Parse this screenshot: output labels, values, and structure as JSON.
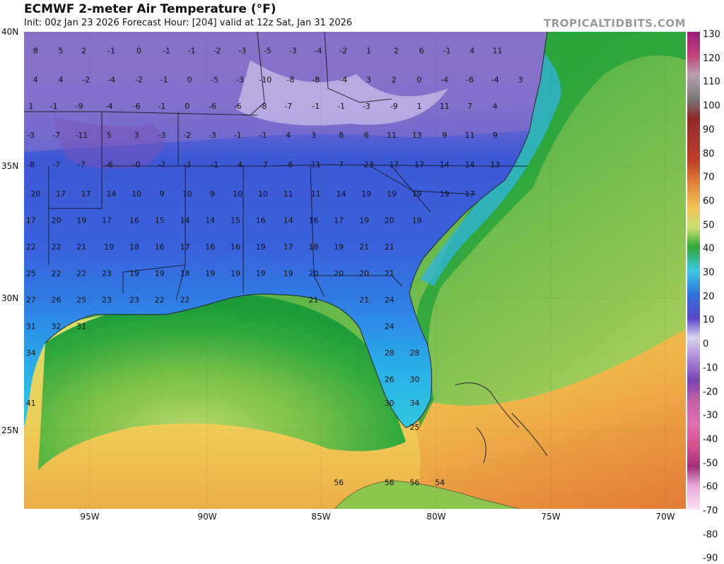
{
  "header": {
    "title": "ECMWF 2-meter Air Temperature (°F)",
    "subtitle": "Init: 00z Jan 23 2026   Forecast Hour: [204]   valid at 12z Sat, Jan 31 2026",
    "brand": "TROPICALTIDBITS.COM"
  },
  "axes": {
    "lat_labels": [
      "40N",
      "35N",
      "30N",
      "25N"
    ],
    "lon_labels": [
      "95W",
      "90W",
      "85W",
      "80W",
      "75W",
      "70W"
    ]
  },
  "colorbar": {
    "ticks": [
      "130",
      "120",
      "110",
      "100",
      "90",
      "80",
      "70",
      "60",
      "50",
      "40",
      "30",
      "20",
      "10",
      "0",
      "-10",
      "-20",
      "-30",
      "-40",
      "-50",
      "-60",
      "-70",
      "-80",
      "-90"
    ],
    "colors": [
      "#9a1e7a",
      "#c2447a",
      "#b8a0b0",
      "#8a8a8a",
      "#8e2a2a",
      "#c0402a",
      "#e08838",
      "#f0c858",
      "#c8e070",
      "#30a838",
      "#3cc0d8",
      "#3070d8",
      "#5a48c8",
      "#d8d0e8",
      "#b090d8",
      "#8048b0",
      "#c060a8",
      "#e070b0",
      "#d0508a",
      "#a03078",
      "#e8a8d8",
      "#ffd8f0"
    ]
  },
  "station_values": [
    {
      "lon": -97.6,
      "lat": 39.3,
      "t": "8"
    },
    {
      "lon": -96.5,
      "lat": 39.3,
      "t": "5"
    },
    {
      "lon": -95.5,
      "lat": 39.3,
      "t": "2"
    },
    {
      "lon": -94.3,
      "lat": 39.3,
      "t": "-1"
    },
    {
      "lon": -93.1,
      "lat": 39.3,
      "t": "0"
    },
    {
      "lon": -91.9,
      "lat": 39.3,
      "t": "-1"
    },
    {
      "lon": -90.8,
      "lat": 39.3,
      "t": "-1"
    },
    {
      "lon": -89.7,
      "lat": 39.3,
      "t": "-2"
    },
    {
      "lon": -88.6,
      "lat": 39.3,
      "t": "-3"
    },
    {
      "lon": -87.5,
      "lat": 39.3,
      "t": "-5"
    },
    {
      "lon": -86.4,
      "lat": 39.3,
      "t": "-3"
    },
    {
      "lon": -85.3,
      "lat": 39.3,
      "t": "-4"
    },
    {
      "lon": -84.2,
      "lat": 39.3,
      "t": "-2"
    },
    {
      "lon": -83.1,
      "lat": 39.3,
      "t": "1"
    },
    {
      "lon": -81.9,
      "lat": 39.3,
      "t": "2"
    },
    {
      "lon": -80.8,
      "lat": 39.3,
      "t": "6"
    },
    {
      "lon": -79.7,
      "lat": 39.3,
      "t": "-1"
    },
    {
      "lon": -78.6,
      "lat": 39.3,
      "t": "4"
    },
    {
      "lon": -77.5,
      "lat": 39.3,
      "t": "11"
    },
    {
      "lon": -97.6,
      "lat": 38.2,
      "t": "4"
    },
    {
      "lon": -96.5,
      "lat": 38.2,
      "t": "4"
    },
    {
      "lon": -95.4,
      "lat": 38.2,
      "t": "-2"
    },
    {
      "lon": -94.3,
      "lat": 38.2,
      "t": "-4"
    },
    {
      "lon": -93.1,
      "lat": 38.2,
      "t": "-2"
    },
    {
      "lon": -92,
      "lat": 38.2,
      "t": "-1"
    },
    {
      "lon": -90.9,
      "lat": 38.2,
      "t": "0"
    },
    {
      "lon": -89.8,
      "lat": 38.2,
      "t": "-5"
    },
    {
      "lon": -88.7,
      "lat": 38.2,
      "t": "-3"
    },
    {
      "lon": -87.6,
      "lat": 38.2,
      "t": "-10"
    },
    {
      "lon": -86.5,
      "lat": 38.2,
      "t": "-8"
    },
    {
      "lon": -85.4,
      "lat": 38.2,
      "t": "-8"
    },
    {
      "lon": -84.2,
      "lat": 38.2,
      "t": "-4"
    },
    {
      "lon": -83.1,
      "lat": 38.2,
      "t": "3"
    },
    {
      "lon": -82,
      "lat": 38.2,
      "t": "2"
    },
    {
      "lon": -80.9,
      "lat": 38.2,
      "t": "0"
    },
    {
      "lon": -79.8,
      "lat": 38.2,
      "t": "-4"
    },
    {
      "lon": -78.7,
      "lat": 38.2,
      "t": "-6"
    },
    {
      "lon": -77.6,
      "lat": 38.2,
      "t": "-4"
    },
    {
      "lon": -76.5,
      "lat": 38.2,
      "t": "3"
    },
    {
      "lon": -97.8,
      "lat": 37.2,
      "t": "1"
    },
    {
      "lon": -96.8,
      "lat": 37.2,
      "t": "-1"
    },
    {
      "lon": -95.7,
      "lat": 37.2,
      "t": "-9"
    },
    {
      "lon": -94.4,
      "lat": 37.2,
      "t": "-4"
    },
    {
      "lon": -93.2,
      "lat": 37.2,
      "t": "-6"
    },
    {
      "lon": -92.1,
      "lat": 37.2,
      "t": "-1"
    },
    {
      "lon": -91,
      "lat": 37.2,
      "t": "0"
    },
    {
      "lon": -89.9,
      "lat": 37.2,
      "t": "-6"
    },
    {
      "lon": -88.8,
      "lat": 37.2,
      "t": "-6"
    },
    {
      "lon": -87.7,
      "lat": 37.2,
      "t": "-8"
    },
    {
      "lon": -86.6,
      "lat": 37.2,
      "t": "-7"
    },
    {
      "lon": -85.4,
      "lat": 37.2,
      "t": "-1"
    },
    {
      "lon": -84.3,
      "lat": 37.2,
      "t": "-1"
    },
    {
      "lon": -83.2,
      "lat": 37.2,
      "t": "-3"
    },
    {
      "lon": -82,
      "lat": 37.2,
      "t": "-9"
    },
    {
      "lon": -80.9,
      "lat": 37.2,
      "t": "1"
    },
    {
      "lon": -79.8,
      "lat": 37.2,
      "t": "11"
    },
    {
      "lon": -78.7,
      "lat": 37.2,
      "t": "7"
    },
    {
      "lon": -77.6,
      "lat": 37.2,
      "t": "4"
    },
    {
      "lon": -97.8,
      "lat": 36.1,
      "t": "-3"
    },
    {
      "lon": -96.7,
      "lat": 36.1,
      "t": "-7"
    },
    {
      "lon": -95.6,
      "lat": 36.1,
      "t": "-11"
    },
    {
      "lon": -94.4,
      "lat": 36.1,
      "t": "5"
    },
    {
      "lon": -93.2,
      "lat": 36.1,
      "t": "3"
    },
    {
      "lon": -92.1,
      "lat": 36.1,
      "t": "-3"
    },
    {
      "lon": -91,
      "lat": 36.1,
      "t": "-2"
    },
    {
      "lon": -89.9,
      "lat": 36.1,
      "t": "-3"
    },
    {
      "lon": -88.8,
      "lat": 36.1,
      "t": "-1"
    },
    {
      "lon": -87.7,
      "lat": 36.1,
      "t": "-1"
    },
    {
      "lon": -86.6,
      "lat": 36.1,
      "t": "4"
    },
    {
      "lon": -85.5,
      "lat": 36.1,
      "t": "3"
    },
    {
      "lon": -84.3,
      "lat": 36.1,
      "t": "8"
    },
    {
      "lon": -83.2,
      "lat": 36.1,
      "t": "6"
    },
    {
      "lon": -82.1,
      "lat": 36.1,
      "t": "11"
    },
    {
      "lon": -81,
      "lat": 36.1,
      "t": "13"
    },
    {
      "lon": -79.8,
      "lat": 36.1,
      "t": "9"
    },
    {
      "lon": -78.7,
      "lat": 36.1,
      "t": "11"
    },
    {
      "lon": -77.6,
      "lat": 36.1,
      "t": "9"
    },
    {
      "lon": -97.8,
      "lat": 35,
      "t": "-8"
    },
    {
      "lon": -96.7,
      "lat": 35,
      "t": "-7"
    },
    {
      "lon": -95.6,
      "lat": 35,
      "t": "-7"
    },
    {
      "lon": -94.4,
      "lat": 35,
      "t": "-6"
    },
    {
      "lon": -93.2,
      "lat": 35,
      "t": "-0"
    },
    {
      "lon": -92.1,
      "lat": 35,
      "t": "-7"
    },
    {
      "lon": -91,
      "lat": 35,
      "t": "-3"
    },
    {
      "lon": -89.8,
      "lat": 35,
      "t": "-1"
    },
    {
      "lon": -88.7,
      "lat": 35,
      "t": "4"
    },
    {
      "lon": -87.6,
      "lat": 35,
      "t": "7"
    },
    {
      "lon": -86.5,
      "lat": 35,
      "t": "6"
    },
    {
      "lon": -85.4,
      "lat": 35,
      "t": "11"
    },
    {
      "lon": -84.3,
      "lat": 35,
      "t": "7"
    },
    {
      "lon": -83.1,
      "lat": 35,
      "t": "23"
    },
    {
      "lon": -82,
      "lat": 35,
      "t": "17"
    },
    {
      "lon": -80.9,
      "lat": 35,
      "t": "17"
    },
    {
      "lon": -79.8,
      "lat": 35,
      "t": "14"
    },
    {
      "lon": -78.7,
      "lat": 35,
      "t": "14"
    },
    {
      "lon": -77.6,
      "lat": 35,
      "t": "13"
    },
    {
      "lon": -97.6,
      "lat": 33.9,
      "t": "20"
    },
    {
      "lon": -96.5,
      "lat": 33.9,
      "t": "17"
    },
    {
      "lon": -95.4,
      "lat": 33.9,
      "t": "17"
    },
    {
      "lon": -94.3,
      "lat": 33.9,
      "t": "14"
    },
    {
      "lon": -93.2,
      "lat": 33.9,
      "t": "10"
    },
    {
      "lon": -92.1,
      "lat": 33.9,
      "t": "9"
    },
    {
      "lon": -91,
      "lat": 33.9,
      "t": "10"
    },
    {
      "lon": -89.9,
      "lat": 33.9,
      "t": "9"
    },
    {
      "lon": -88.8,
      "lat": 33.9,
      "t": "10"
    },
    {
      "lon": -87.7,
      "lat": 33.9,
      "t": "10"
    },
    {
      "lon": -86.6,
      "lat": 33.9,
      "t": "11"
    },
    {
      "lon": -85.4,
      "lat": 33.9,
      "t": "11"
    },
    {
      "lon": -84.3,
      "lat": 33.9,
      "t": "14"
    },
    {
      "lon": -83.2,
      "lat": 33.9,
      "t": "19"
    },
    {
      "lon": -82.1,
      "lat": 33.9,
      "t": "19"
    },
    {
      "lon": -81,
      "lat": 33.9,
      "t": "19"
    },
    {
      "lon": -79.8,
      "lat": 33.9,
      "t": "19"
    },
    {
      "lon": -78.7,
      "lat": 33.9,
      "t": "17"
    },
    {
      "lon": -97.8,
      "lat": 32.9,
      "t": "17"
    },
    {
      "lon": -96.7,
      "lat": 32.9,
      "t": "20"
    },
    {
      "lon": -95.6,
      "lat": 32.9,
      "t": "19"
    },
    {
      "lon": -94.5,
      "lat": 32.9,
      "t": "17"
    },
    {
      "lon": -93.3,
      "lat": 32.9,
      "t": "16"
    },
    {
      "lon": -92.2,
      "lat": 32.9,
      "t": "15"
    },
    {
      "lon": -91.1,
      "lat": 32.9,
      "t": "14"
    },
    {
      "lon": -90,
      "lat": 32.9,
      "t": "14"
    },
    {
      "lon": -88.9,
      "lat": 32.9,
      "t": "15"
    },
    {
      "lon": -87.8,
      "lat": 32.9,
      "t": "16"
    },
    {
      "lon": -86.6,
      "lat": 32.9,
      "t": "14"
    },
    {
      "lon": -85.5,
      "lat": 32.9,
      "t": "16"
    },
    {
      "lon": -84.4,
      "lat": 32.9,
      "t": "17"
    },
    {
      "lon": -83.3,
      "lat": 32.9,
      "t": "19"
    },
    {
      "lon": -82.2,
      "lat": 32.9,
      "t": "20"
    },
    {
      "lon": -81,
      "lat": 32.9,
      "t": "19"
    },
    {
      "lon": -97.8,
      "lat": 31.9,
      "t": "22"
    },
    {
      "lon": -96.7,
      "lat": 31.9,
      "t": "22"
    },
    {
      "lon": -95.6,
      "lat": 31.9,
      "t": "21"
    },
    {
      "lon": -94.4,
      "lat": 31.9,
      "t": "19"
    },
    {
      "lon": -93.3,
      "lat": 31.9,
      "t": "18"
    },
    {
      "lon": -92.2,
      "lat": 31.9,
      "t": "16"
    },
    {
      "lon": -91.1,
      "lat": 31.9,
      "t": "17"
    },
    {
      "lon": -90,
      "lat": 31.9,
      "t": "16"
    },
    {
      "lon": -88.9,
      "lat": 31.9,
      "t": "16"
    },
    {
      "lon": -87.8,
      "lat": 31.9,
      "t": "19"
    },
    {
      "lon": -86.6,
      "lat": 31.9,
      "t": "17"
    },
    {
      "lon": -85.5,
      "lat": 31.9,
      "t": "18"
    },
    {
      "lon": -84.4,
      "lat": 31.9,
      "t": "19"
    },
    {
      "lon": -83.3,
      "lat": 31.9,
      "t": "21"
    },
    {
      "lon": -82.2,
      "lat": 31.9,
      "t": "21"
    },
    {
      "lon": -97.8,
      "lat": 30.9,
      "t": "25"
    },
    {
      "lon": -96.7,
      "lat": 30.9,
      "t": "22"
    },
    {
      "lon": -95.6,
      "lat": 30.9,
      "t": "22"
    },
    {
      "lon": -94.5,
      "lat": 30.9,
      "t": "23"
    },
    {
      "lon": -93.3,
      "lat": 30.9,
      "t": "19"
    },
    {
      "lon": -92.2,
      "lat": 30.9,
      "t": "19"
    },
    {
      "lon": -91.1,
      "lat": 30.9,
      "t": "18"
    },
    {
      "lon": -90,
      "lat": 30.9,
      "t": "19"
    },
    {
      "lon": -88.9,
      "lat": 30.9,
      "t": "19"
    },
    {
      "lon": -87.8,
      "lat": 30.9,
      "t": "19"
    },
    {
      "lon": -86.6,
      "lat": 30.9,
      "t": "19"
    },
    {
      "lon": -85.5,
      "lat": 30.9,
      "t": "20"
    },
    {
      "lon": -84.4,
      "lat": 30.9,
      "t": "20"
    },
    {
      "lon": -83.3,
      "lat": 30.9,
      "t": "20"
    },
    {
      "lon": -82.2,
      "lat": 30.9,
      "t": "21"
    },
    {
      "lon": -97.8,
      "lat": 29.9,
      "t": "27"
    },
    {
      "lon": -96.7,
      "lat": 29.9,
      "t": "26"
    },
    {
      "lon": -95.6,
      "lat": 29.9,
      "t": "25"
    },
    {
      "lon": -94.5,
      "lat": 29.9,
      "t": "23"
    },
    {
      "lon": -93.3,
      "lat": 29.9,
      "t": "23"
    },
    {
      "lon": -92.2,
      "lat": 29.9,
      "t": "22"
    },
    {
      "lon": -91.1,
      "lat": 29.9,
      "t": "22"
    },
    {
      "lon": -85.5,
      "lat": 29.9,
      "t": "21"
    },
    {
      "lon": -83.3,
      "lat": 29.9,
      "t": "21"
    },
    {
      "lon": -82.2,
      "lat": 29.9,
      "t": "24"
    },
    {
      "lon": -97.8,
      "lat": 28.9,
      "t": "31"
    },
    {
      "lon": -96.7,
      "lat": 28.9,
      "t": "32"
    },
    {
      "lon": -95.6,
      "lat": 28.9,
      "t": "31"
    },
    {
      "lon": -82.2,
      "lat": 28.9,
      "t": "24"
    },
    {
      "lon": -97.8,
      "lat": 27.9,
      "t": "34"
    },
    {
      "lon": -82.2,
      "lat": 27.9,
      "t": "28"
    },
    {
      "lon": -81.1,
      "lat": 27.9,
      "t": "28"
    },
    {
      "lon": -82.2,
      "lat": 26.9,
      "t": "26"
    },
    {
      "lon": -81.1,
      "lat": 26.9,
      "t": "30"
    },
    {
      "lon": -97.8,
      "lat": 26,
      "t": "41"
    },
    {
      "lon": -82.2,
      "lat": 26,
      "t": "30"
    },
    {
      "lon": -81.1,
      "lat": 26,
      "t": "34"
    },
    {
      "lon": -81.1,
      "lat": 25.1,
      "t": "25"
    },
    {
      "lon": -84.4,
      "lat": 23,
      "t": "56"
    },
    {
      "lon": -82.2,
      "lat": 23,
      "t": "56"
    },
    {
      "lon": -81.1,
      "lat": 23,
      "t": "56"
    },
    {
      "lon": -80,
      "lat": 23,
      "t": "54"
    }
  ]
}
